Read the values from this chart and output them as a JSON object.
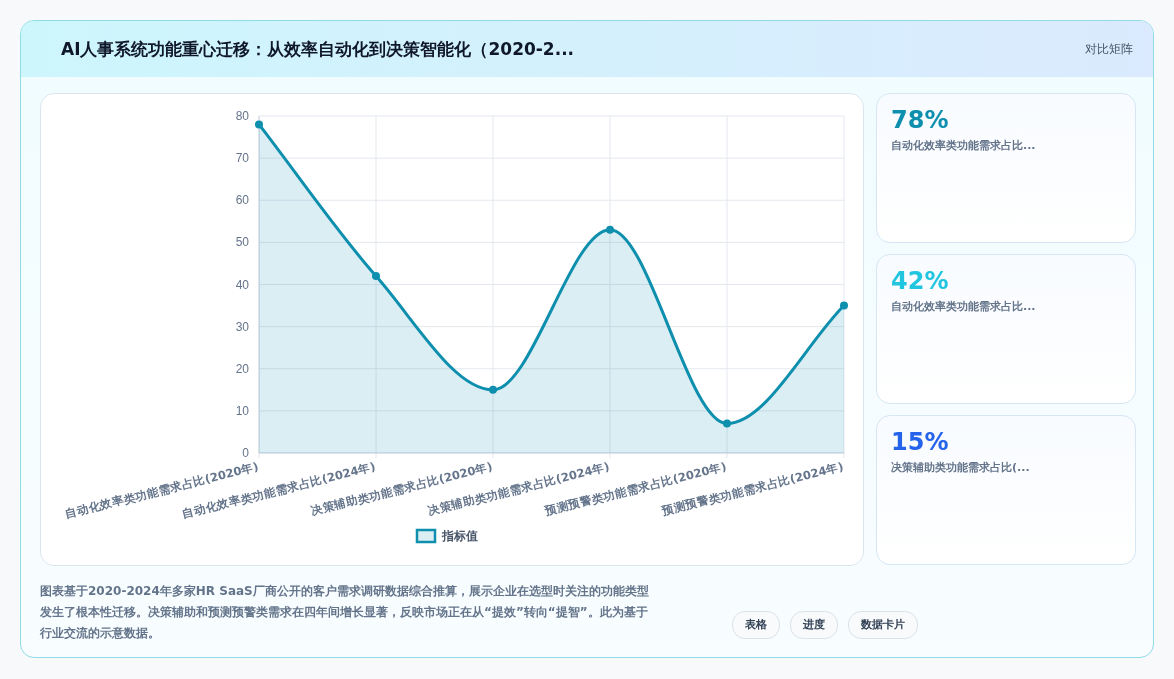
{
  "chart_data": [
    {
      "type": "area",
      "title": "AI人事系统功能重心迁移：从效率自动化到决策智能化（2020-2...",
      "categories": [
        "自动化效率类功能需求占比(2020年)",
        "自动化效率类功能需求占比(2024年)",
        "决策辅助类功能需求占比(2020年)",
        "决策辅助类功能需求占比(2024年)",
        "预测预警类功能需求占比(2020年)",
        "预测预警类功能需求占比(2024年)"
      ],
      "series": [
        {
          "name": "指标值",
          "color": "#0e8fae",
          "values": [
            78,
            42,
            15,
            53,
            7,
            35
          ]
        }
      ],
      "ylim": [
        0,
        80
      ],
      "yticks": [
        0,
        10,
        20,
        30,
        40,
        50,
        60,
        70,
        80
      ],
      "grid": true,
      "legend": "bottom",
      "marker": "circle",
      "annotations": [
        "对比矩阵",
        "图表基于2020-2024年多家HR SaaS厂商公开的客户需求调研数据综合推算，展示企业在选型时关注的功能类型发生了根本性迁移。决策辅助和预测预警类需求在四年间增长显著，反映市场正在从“提效”转向“提智”。此为基于行业交流的示意数据。",
        "表格",
        "进度",
        "数据卡片"
      ]
    },
    {
      "type": "other",
      "title": "78%",
      "color": "#0e8fae",
      "annotations": [
        "自动化效率类功能需求占比..."
      ]
    },
    {
      "type": "other",
      "title": "42%",
      "color": "#22c5e0",
      "annotations": [
        "自动化效率类功能需求占比..."
      ]
    },
    {
      "type": "other",
      "title": "15%",
      "color": "#2563eb",
      "annotations": [
        "决策辅助类功能需求占比(..."
      ]
    }
  ]
}
